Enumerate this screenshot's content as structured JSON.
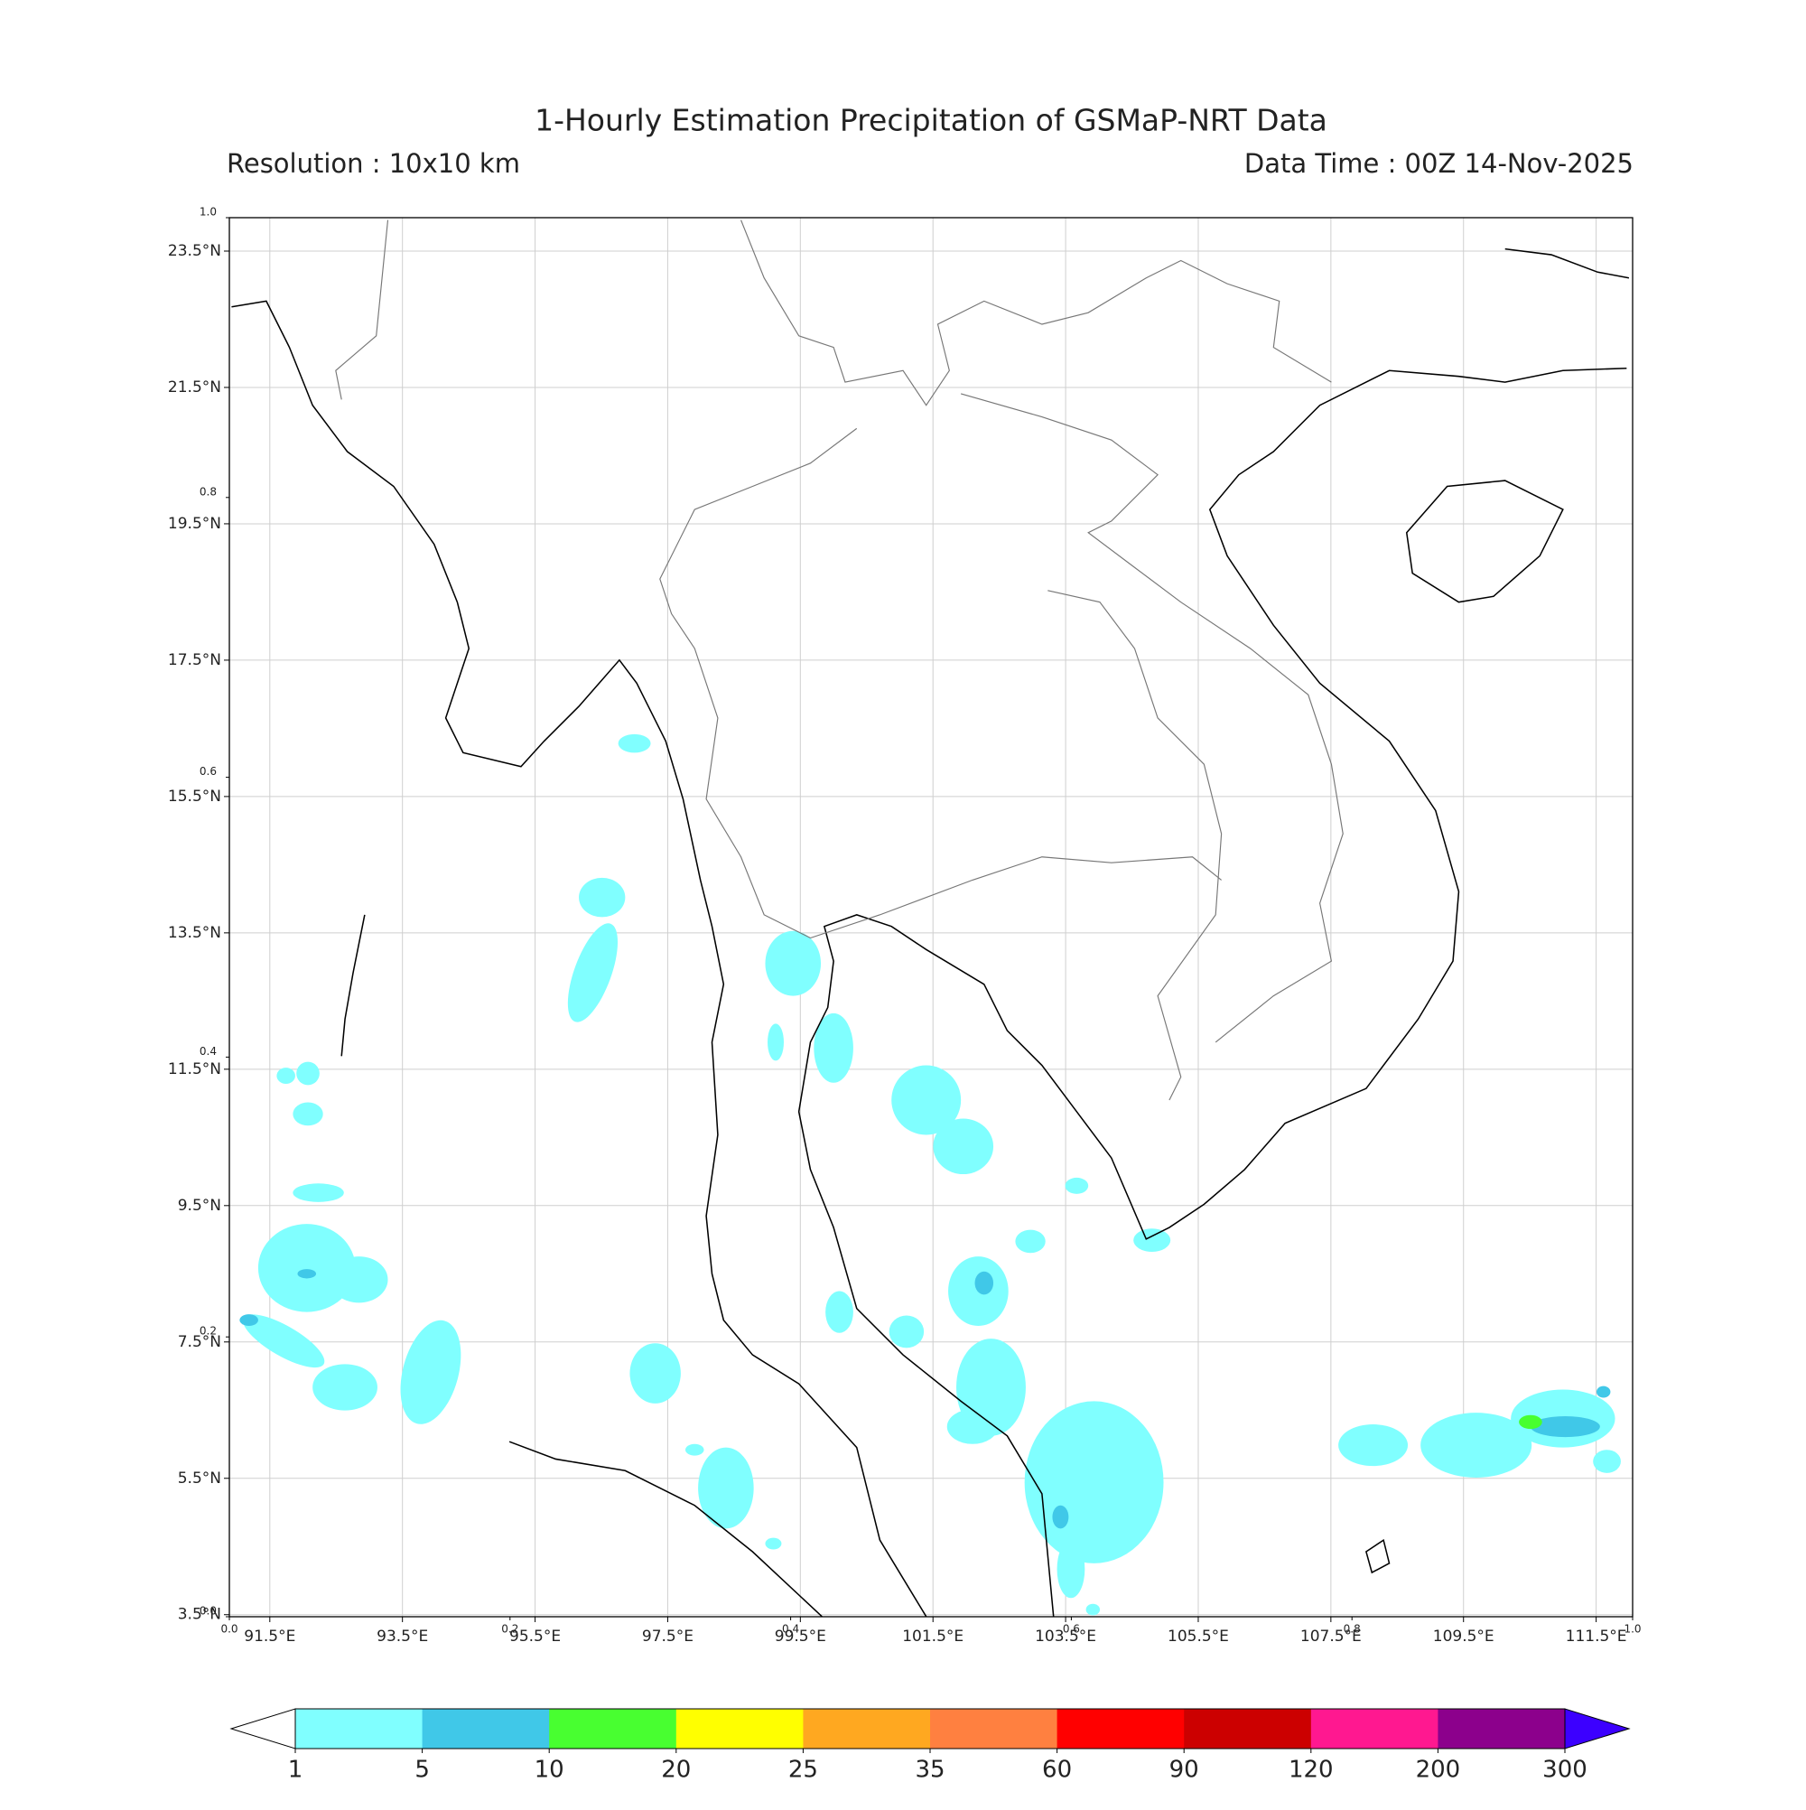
{
  "header": {
    "title": "1-Hourly Estimation Precipitation of GSMaP-NRT Data",
    "resolution": "Resolution : 10x10 km",
    "data_time": "Data Time : 00Z 14-Nov-2025"
  },
  "map": {
    "xlim": [
      90.89,
      112.05
    ],
    "ylim": [
      3.47,
      23.99
    ],
    "grid": true,
    "xticks": [
      {
        "value": 91.5,
        "label": "91.5°E"
      },
      {
        "value": 93.5,
        "label": "93.5°E"
      },
      {
        "value": 95.5,
        "label": "95.5°E"
      },
      {
        "value": 97.5,
        "label": "97.5°E"
      },
      {
        "value": 99.5,
        "label": "99.5°E"
      },
      {
        "value": 101.5,
        "label": "101.5°E"
      },
      {
        "value": 103.5,
        "label": "103.5°E"
      },
      {
        "value": 105.5,
        "label": "105.5°E"
      },
      {
        "value": 107.5,
        "label": "107.5°E"
      },
      {
        "value": 109.5,
        "label": "109.5°E"
      },
      {
        "value": 111.5,
        "label": "111.5°E"
      }
    ],
    "yticks": [
      {
        "value": 3.5,
        "label": "3.5°N"
      },
      {
        "value": 5.5,
        "label": "5.5°N"
      },
      {
        "value": 7.5,
        "label": "7.5°N"
      },
      {
        "value": 9.5,
        "label": "9.5°N"
      },
      {
        "value": 11.5,
        "label": "11.5°N"
      },
      {
        "value": 13.5,
        "label": "13.5°N"
      },
      {
        "value": 15.5,
        "label": "15.5°N"
      },
      {
        "value": 17.5,
        "label": "17.5°N"
      },
      {
        "value": 19.5,
        "label": "19.5°N"
      },
      {
        "value": 21.5,
        "label": "21.5°N"
      },
      {
        "value": 23.5,
        "label": "23.5°N"
      }
    ]
  },
  "overlay_axis": {
    "xlim": [
      0,
      1
    ],
    "ylim": [
      0,
      1
    ],
    "xticks": [
      {
        "value": 0,
        "label": "0.0"
      },
      {
        "value": 0.2,
        "label": "0.2"
      },
      {
        "value": 0.4,
        "label": "0.4"
      },
      {
        "value": 0.6,
        "label": "0.6"
      },
      {
        "value": 0.8,
        "label": "0.8"
      },
      {
        "value": 1,
        "label": "1.0"
      }
    ],
    "yticks": [
      {
        "value": 0,
        "label": "0.0"
      },
      {
        "value": 0.2,
        "label": "0.2"
      },
      {
        "value": 0.4,
        "label": "0.4"
      },
      {
        "value": 0.6,
        "label": "0.6"
      },
      {
        "value": 0.8,
        "label": "0.8"
      },
      {
        "value": 1,
        "label": "1.0"
      }
    ]
  },
  "colorbar": {
    "levels": [
      1,
      5,
      10,
      20,
      25,
      35,
      60,
      90,
      120,
      200,
      300
    ],
    "colors": [
      "#80ffff",
      "#40c8e8",
      "#48ff30",
      "#ffff00",
      "#ffa820",
      "#ff8040",
      "#ff0000",
      "#cc0000",
      "#ff1890",
      "#8c008c"
    ],
    "under_color": "#ffffff",
    "over_color": "#3c00ff"
  }
}
